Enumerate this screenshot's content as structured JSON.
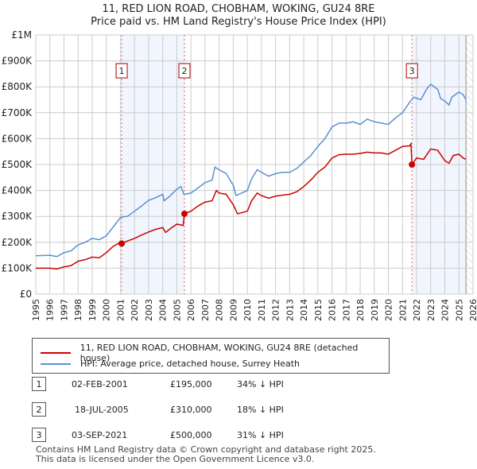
{
  "title_line1": "11, RED LION ROAD, CHOBHAM, WOKING, GU24 8RE",
  "title_line2": "Price paid vs. HM Land Registry's House Price Index (HPI)",
  "chart_data": {
    "type": "line",
    "title": "11, RED LION ROAD, CHOBHAM, WOKING, GU24 8RE — Price paid vs. HM Land Registry's House Price Index (HPI)",
    "xlim": [
      1995,
      2026
    ],
    "ylim": [
      0,
      1000000
    ],
    "x_ticks": [
      "1995",
      "1996",
      "1997",
      "1998",
      "1999",
      "2000",
      "2001",
      "2002",
      "2003",
      "2004",
      "2005",
      "2006",
      "2007",
      "2008",
      "2009",
      "2010",
      "2011",
      "2012",
      "2013",
      "2014",
      "2015",
      "2016",
      "2017",
      "2018",
      "2019",
      "2020",
      "2021",
      "2022",
      "2023",
      "2024",
      "2025",
      "2026"
    ],
    "y_ticks": [
      {
        "v": 0,
        "label": "£0"
      },
      {
        "v": 100000,
        "label": "£100K"
      },
      {
        "v": 200000,
        "label": "£200K"
      },
      {
        "v": 300000,
        "label": "£300K"
      },
      {
        "v": 400000,
        "label": "£400K"
      },
      {
        "v": 500000,
        "label": "£500K"
      },
      {
        "v": 600000,
        "label": "£600K"
      },
      {
        "v": 700000,
        "label": "£700K"
      },
      {
        "v": 800000,
        "label": "£800K"
      },
      {
        "v": 900000,
        "label": "£900K"
      },
      {
        "v": 1000000,
        "label": "£1M"
      }
    ],
    "grid": true,
    "series": [
      {
        "name": "11, RED LION ROAD, CHOBHAM, WOKING, GU24 8RE (detached house)",
        "color": "#cc0000",
        "points": [
          [
            1995,
            100000
          ],
          [
            1996,
            100000
          ],
          [
            1996.5,
            97000
          ],
          [
            1997,
            105000
          ],
          [
            1997.5,
            110000
          ],
          [
            1998,
            127000
          ],
          [
            1998.5,
            133000
          ],
          [
            1999,
            143000
          ],
          [
            1999.5,
            140000
          ],
          [
            2000,
            160000
          ],
          [
            2000.5,
            185000
          ],
          [
            2001,
            200000
          ],
          [
            2001.09,
            195000
          ],
          [
            2001.5,
            205000
          ],
          [
            2002,
            215000
          ],
          [
            2002.5,
            228000
          ],
          [
            2003,
            240000
          ],
          [
            2003.5,
            250000
          ],
          [
            2004,
            257000
          ],
          [
            2004.2,
            238000
          ],
          [
            2004.6,
            255000
          ],
          [
            2005,
            270000
          ],
          [
            2005.45,
            265000
          ],
          [
            2005.54,
            310000
          ],
          [
            2006,
            320000
          ],
          [
            2006.5,
            340000
          ],
          [
            2007,
            355000
          ],
          [
            2007.5,
            360000
          ],
          [
            2007.8,
            400000
          ],
          [
            2008,
            390000
          ],
          [
            2008.5,
            385000
          ],
          [
            2009,
            345000
          ],
          [
            2009.3,
            310000
          ],
          [
            2010,
            320000
          ],
          [
            2010.3,
            360000
          ],
          [
            2010.7,
            390000
          ],
          [
            2011,
            380000
          ],
          [
            2011.5,
            370000
          ],
          [
            2012,
            378000
          ],
          [
            2012.5,
            382000
          ],
          [
            2013,
            385000
          ],
          [
            2013.5,
            395000
          ],
          [
            2014,
            415000
          ],
          [
            2014.5,
            440000
          ],
          [
            2015,
            470000
          ],
          [
            2015.5,
            490000
          ],
          [
            2016,
            525000
          ],
          [
            2016.5,
            538000
          ],
          [
            2017,
            540000
          ],
          [
            2017.5,
            540000
          ],
          [
            2018,
            543000
          ],
          [
            2018.5,
            548000
          ],
          [
            2019,
            545000
          ],
          [
            2019.5,
            545000
          ],
          [
            2020,
            540000
          ],
          [
            2020.5,
            555000
          ],
          [
            2021,
            570000
          ],
          [
            2021.5,
            572000
          ],
          [
            2021.6,
            580000
          ],
          [
            2021.67,
            500000
          ],
          [
            2022,
            525000
          ],
          [
            2022.5,
            520000
          ],
          [
            2023,
            560000
          ],
          [
            2023.5,
            555000
          ],
          [
            2024,
            515000
          ],
          [
            2024.3,
            505000
          ],
          [
            2024.6,
            535000
          ],
          [
            2025,
            540000
          ],
          [
            2025.3,
            525000
          ],
          [
            2025.5,
            520000
          ]
        ]
      },
      {
        "name": "HPI: Average price, detached house, Surrey Heath",
        "color": "#5b8fd4",
        "points": [
          [
            1995,
            148000
          ],
          [
            1996,
            150000
          ],
          [
            1996.5,
            145000
          ],
          [
            1997,
            160000
          ],
          [
            1997.5,
            167000
          ],
          [
            1998,
            190000
          ],
          [
            1998.5,
            200000
          ],
          [
            1999,
            215000
          ],
          [
            1999.5,
            210000
          ],
          [
            2000,
            225000
          ],
          [
            2000.5,
            260000
          ],
          [
            2001,
            295000
          ],
          [
            2001.09,
            298000
          ],
          [
            2001.5,
            300000
          ],
          [
            2002,
            320000
          ],
          [
            2002.5,
            340000
          ],
          [
            2003,
            362000
          ],
          [
            2003.5,
            372000
          ],
          [
            2004,
            385000
          ],
          [
            2004.1,
            360000
          ],
          [
            2004.5,
            378000
          ],
          [
            2005,
            405000
          ],
          [
            2005.3,
            415000
          ],
          [
            2005.5,
            385000
          ],
          [
            2006,
            390000
          ],
          [
            2006.5,
            410000
          ],
          [
            2007,
            430000
          ],
          [
            2007.5,
            440000
          ],
          [
            2007.7,
            490000
          ],
          [
            2008,
            480000
          ],
          [
            2008.5,
            465000
          ],
          [
            2009,
            420000
          ],
          [
            2009.2,
            380000
          ],
          [
            2010,
            400000
          ],
          [
            2010.3,
            445000
          ],
          [
            2010.7,
            480000
          ],
          [
            2011,
            470000
          ],
          [
            2011.5,
            455000
          ],
          [
            2012,
            465000
          ],
          [
            2012.5,
            470000
          ],
          [
            2013,
            470000
          ],
          [
            2013.5,
            485000
          ],
          [
            2014,
            510000
          ],
          [
            2014.5,
            535000
          ],
          [
            2015,
            570000
          ],
          [
            2015.5,
            600000
          ],
          [
            2016,
            645000
          ],
          [
            2016.5,
            660000
          ],
          [
            2017,
            660000
          ],
          [
            2017.5,
            665000
          ],
          [
            2018,
            655000
          ],
          [
            2018.5,
            675000
          ],
          [
            2019,
            665000
          ],
          [
            2019.5,
            660000
          ],
          [
            2020,
            655000
          ],
          [
            2020.5,
            680000
          ],
          [
            2021,
            700000
          ],
          [
            2021.5,
            740000
          ],
          [
            2021.8,
            760000
          ],
          [
            2022.3,
            750000
          ],
          [
            2022.7,
            790000
          ],
          [
            2023,
            810000
          ],
          [
            2023.5,
            790000
          ],
          [
            2023.7,
            755000
          ],
          [
            2024,
            745000
          ],
          [
            2024.3,
            730000
          ],
          [
            2024.5,
            760000
          ],
          [
            2025,
            780000
          ],
          [
            2025.3,
            770000
          ],
          [
            2025.5,
            750000
          ]
        ]
      }
    ],
    "sales": [
      {
        "id": "1",
        "x": 2001.09,
        "price": 195000
      },
      {
        "id": "2",
        "x": 2005.54,
        "price": 310000
      },
      {
        "id": "3",
        "x": 2021.67,
        "price": 500000
      }
    ],
    "shaded_ranges": [
      [
        2001.09,
        2005.54
      ],
      [
        2021.67,
        2025.5
      ]
    ],
    "forecast_hatch": [
      2025.5,
      2026
    ],
    "legend_position": "below"
  },
  "legend": [
    {
      "label": "11, RED LION ROAD, CHOBHAM, WOKING, GU24 8RE (detached house)",
      "color": "#cc0000"
    },
    {
      "label": "HPI: Average price, detached house, Surrey Heath",
      "color": "#5b8fd4"
    }
  ],
  "transactions": [
    {
      "num": "1",
      "date": "02-FEB-2001",
      "price": "£195,000",
      "hpi": "34% ↓ HPI"
    },
    {
      "num": "2",
      "date": "18-JUL-2005",
      "price": "£310,000",
      "hpi": "18% ↓ HPI"
    },
    {
      "num": "3",
      "date": "03-SEP-2021",
      "price": "£500,000",
      "hpi": "31% ↓ HPI"
    }
  ],
  "footer_line1": "Contains HM Land Registry data © Crown copyright and database right 2025.",
  "footer_line2": "This data is licensed under the Open Government Licence v3.0."
}
